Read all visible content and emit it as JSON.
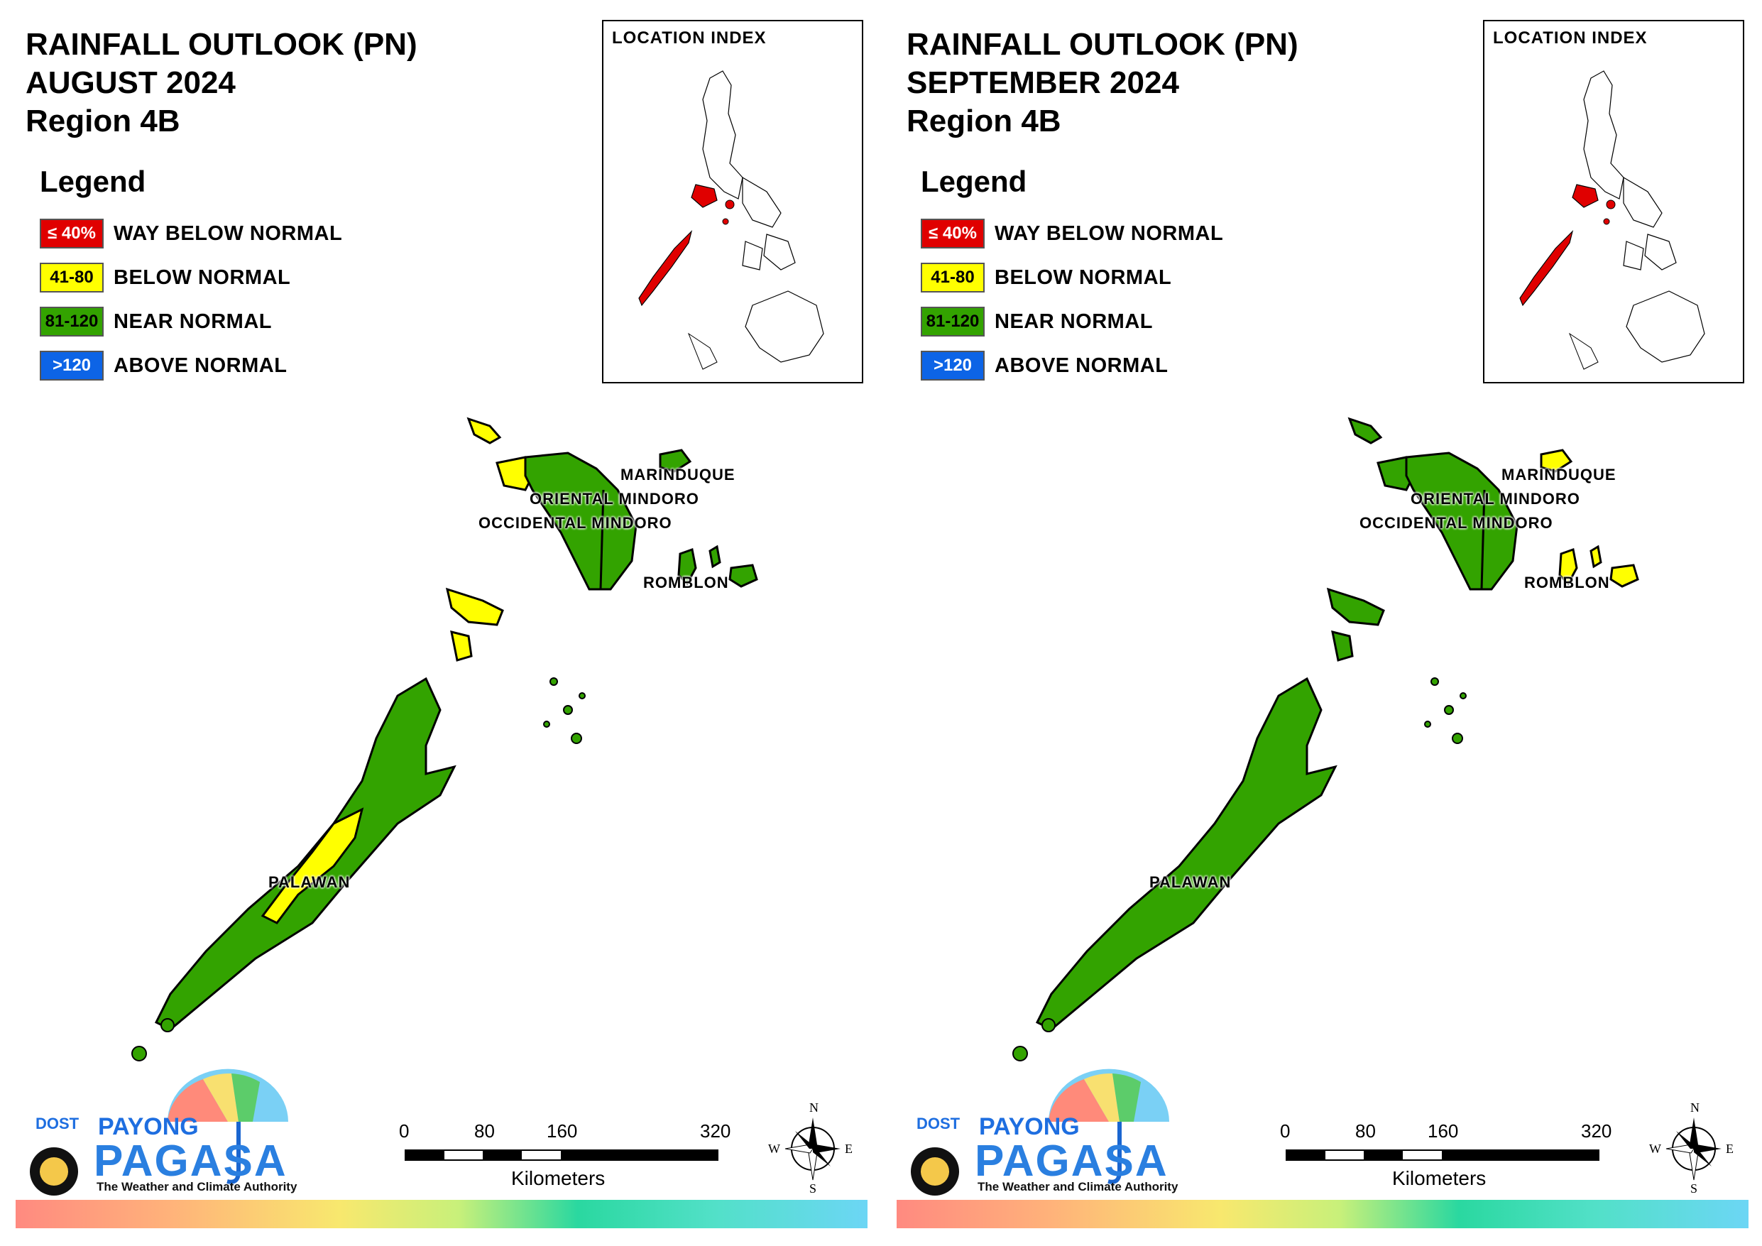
{
  "colors": {
    "way_below": "#e00000",
    "below": "#ffff00",
    "near": "#33a300",
    "above": "#0d64e6"
  },
  "panels": [
    {
      "title_line1": "RAINFALL OUTLOOK (PN)",
      "title_line2": "AUGUST 2024",
      "title_line3": "Region 4B",
      "legend_heading": "Legend",
      "legend": [
        {
          "swatch": "≤ 40%",
          "label": "WAY BELOW NORMAL"
        },
        {
          "swatch": "41-80",
          "label": "BELOW NORMAL"
        },
        {
          "swatch": "81-120",
          "label": "NEAR NORMAL"
        },
        {
          "swatch": ">120",
          "label": "ABOVE NORMAL"
        }
      ],
      "location_index_title": "LOCATION INDEX",
      "provinces": {
        "marinduque": {
          "label": "MARINDUQUE",
          "category": "near"
        },
        "oriental_mindoro": {
          "label": "ORIENTAL MINDORO",
          "category": "near"
        },
        "occidental_mindoro": {
          "label": "OCCIDENTAL MINDORO",
          "category": "near"
        },
        "romblon": {
          "label": "ROMBLON",
          "category": "near"
        },
        "palawan": {
          "label": "PALAWAN",
          "category": "near"
        }
      },
      "scale": {
        "ticks": [
          "0",
          "80",
          "160",
          "320"
        ],
        "unit": "Kilometers"
      },
      "compass": {
        "n": "N",
        "s": "S",
        "e": "E",
        "w": "W"
      },
      "logo": {
        "dost": "DOST",
        "payong": "PAYONG",
        "pagasa": "PAGASA",
        "tagline": "The Weather and Climate Authority"
      }
    },
    {
      "title_line1": "RAINFALL OUTLOOK (PN)",
      "title_line2": "SEPTEMBER 2024",
      "title_line3": "Region 4B",
      "legend_heading": "Legend",
      "legend": [
        {
          "swatch": "≤ 40%",
          "label": "WAY BELOW NORMAL"
        },
        {
          "swatch": "41-80",
          "label": "BELOW NORMAL"
        },
        {
          "swatch": "81-120",
          "label": "NEAR NORMAL"
        },
        {
          "swatch": ">120",
          "label": "ABOVE NORMAL"
        }
      ],
      "location_index_title": "LOCATION INDEX",
      "provinces": {
        "marinduque": {
          "label": "MARINDUQUE",
          "category": "near"
        },
        "oriental_mindoro": {
          "label": "ORIENTAL MINDORO",
          "category": "near"
        },
        "occidental_mindoro": {
          "label": "OCCIDENTAL MINDORO",
          "category": "near"
        },
        "romblon": {
          "label": "ROMBLON",
          "category": "near"
        },
        "palawan": {
          "label": "PALAWAN",
          "category": "near"
        }
      },
      "scale": {
        "ticks": [
          "0",
          "80",
          "160",
          "320"
        ],
        "unit": "Kilometers"
      },
      "compass": {
        "n": "N",
        "s": "S",
        "e": "E",
        "w": "W"
      },
      "logo": {
        "dost": "DOST",
        "payong": "PAYONG",
        "pagasa": "PAGASA",
        "tagline": "The Weather and Climate Authority"
      }
    }
  ]
}
